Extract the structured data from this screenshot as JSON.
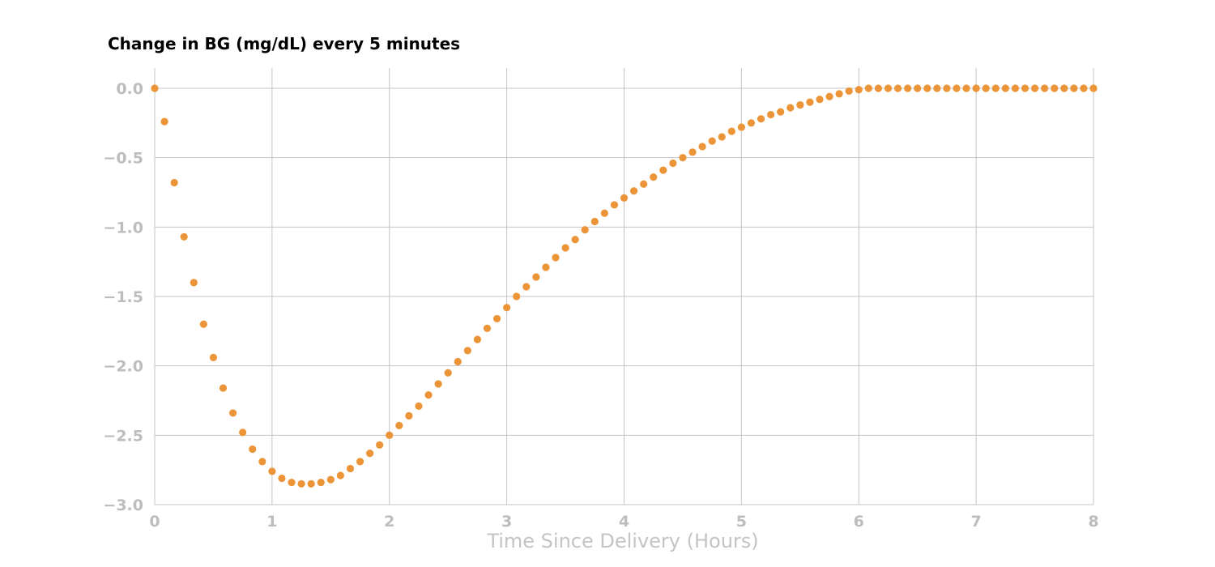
{
  "chart_data": {
    "type": "scatter",
    "title": "Change in BG (mg/dL) every 5 minutes",
    "xlabel": "Time Since Delivery (Hours)",
    "ylabel": "",
    "xlim": [
      0,
      8
    ],
    "ylim": [
      -3.0,
      0.0
    ],
    "xticks": [
      0,
      1,
      2,
      3,
      4,
      5,
      6,
      7,
      8
    ],
    "xtick_labels": [
      "0",
      "1",
      "2",
      "3",
      "4",
      "5",
      "6",
      "7",
      "8"
    ],
    "yticks": [
      0.0,
      -0.5,
      -1.0,
      -1.5,
      -2.0,
      -2.5,
      -3.0
    ],
    "ytick_labels": [
      "0.0",
      "−0.5",
      "−1.0",
      "−1.5",
      "−2.0",
      "−2.5",
      "−3.0"
    ],
    "grid": true,
    "marker_color": "#ec9538",
    "series": [
      {
        "x": [
          0,
          0.0833,
          0.1667,
          0.25,
          0.3333,
          0.4167,
          0.5,
          0.5833,
          0.6667,
          0.75,
          0.8333,
          0.9167,
          1,
          1.0833,
          1.1667,
          1.25,
          1.3333,
          1.4167,
          1.5,
          1.5833,
          1.6667,
          1.75,
          1.8333,
          1.9167,
          2,
          2.0833,
          2.1667,
          2.25,
          2.3333,
          2.4167,
          2.5,
          2.5833,
          2.6667,
          2.75,
          2.8333,
          2.9167,
          3,
          3.0833,
          3.1667,
          3.25,
          3.3333,
          3.4167,
          3.5,
          3.5833,
          3.6667,
          3.75,
          3.8333,
          3.9167,
          4,
          4.0833,
          4.1667,
          4.25,
          4.3333,
          4.4167,
          4.5,
          4.5833,
          4.6667,
          4.75,
          4.8333,
          4.9167,
          5,
          5.0833,
          5.1667,
          5.25,
          5.3333,
          5.4167,
          5.5,
          5.5833,
          5.6667,
          5.75,
          5.8333,
          5.9167,
          6,
          6.0833,
          6.1667,
          6.25,
          6.3333,
          6.4167,
          6.5,
          6.5833,
          6.6667,
          6.75,
          6.8333,
          6.9167,
          7,
          7.0833,
          7.1667,
          7.25,
          7.3333,
          7.4167,
          7.5,
          7.5833,
          7.6667,
          7.75,
          7.8333,
          7.9167,
          8
        ],
        "y": [
          0.0,
          -0.24,
          -0.68,
          -1.07,
          -1.4,
          -1.7,
          -1.94,
          -2.16,
          -2.34,
          -2.48,
          -2.6,
          -2.69,
          -2.76,
          -2.81,
          -2.84,
          -2.85,
          -2.85,
          -2.84,
          -2.82,
          -2.79,
          -2.74,
          -2.69,
          -2.63,
          -2.57,
          -2.5,
          -2.43,
          -2.36,
          -2.29,
          -2.21,
          -2.13,
          -2.05,
          -1.97,
          -1.89,
          -1.81,
          -1.73,
          -1.66,
          -1.58,
          -1.5,
          -1.43,
          -1.36,
          -1.29,
          -1.22,
          -1.15,
          -1.09,
          -1.02,
          -0.96,
          -0.9,
          -0.84,
          -0.79,
          -0.74,
          -0.69,
          -0.64,
          -0.59,
          -0.54,
          -0.5,
          -0.46,
          -0.42,
          -0.38,
          -0.35,
          -0.31,
          -0.28,
          -0.25,
          -0.22,
          -0.19,
          -0.17,
          -0.14,
          -0.12,
          -0.1,
          -0.08,
          -0.06,
          -0.04,
          -0.02,
          -0.01,
          0.0,
          0.0,
          0.0,
          0.0,
          0.0,
          0.0,
          0.0,
          0.0,
          0.0,
          0.0,
          0.0,
          0.0,
          0.0,
          0.0,
          0.0,
          0.0,
          0.0,
          0.0,
          0.0,
          0.0,
          0.0,
          0.0,
          0.0,
          0.0
        ]
      }
    ]
  }
}
